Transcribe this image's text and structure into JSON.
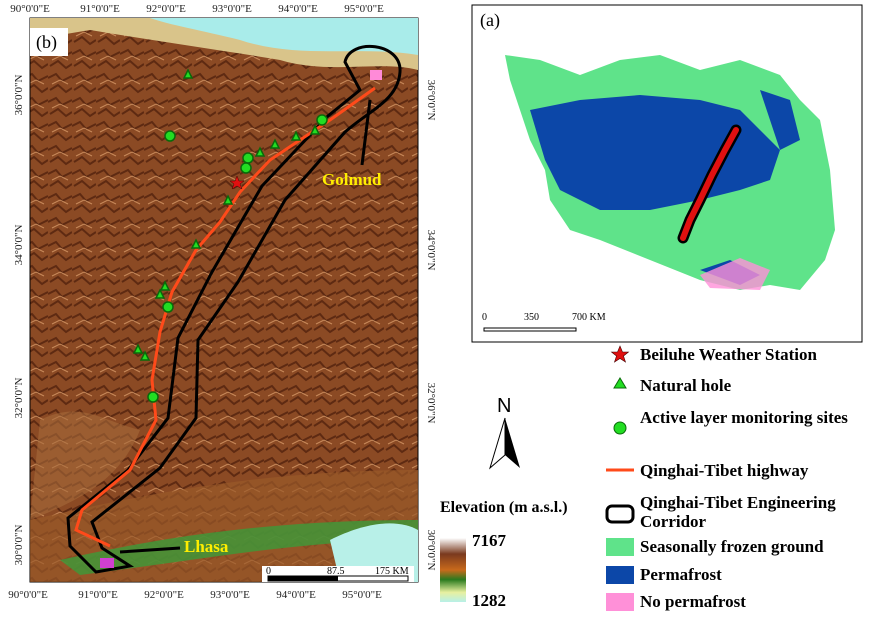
{
  "panel_b": {
    "label": "(b)",
    "top_labels": [
      "90°0'0\"E",
      "91°0'0\"E",
      "92°0'0\"E",
      "93°0'0\"E",
      "94°0'0\"E",
      "95°0'0\"E"
    ],
    "bottom_labels": [
      "90°0'0\"E",
      "91°0'0\"E",
      "92°0'0\"E",
      "93°0'0\"E",
      "94°0'0\"E",
      "95°0'0\"E"
    ],
    "left_labels": [
      "36°0'0\"N",
      "34°0'0\"N",
      "32°0'0\"N",
      "30°0'0\"N"
    ],
    "right_labels": [
      "36°0'0\"N",
      "34°0'0\"N",
      "32°0'0\"N",
      "30°0'0\"N"
    ],
    "places": [
      "Golmud",
      "Lhasa"
    ],
    "scale_bar": [
      "0",
      "87.5",
      "175 KM"
    ],
    "north": "N"
  },
  "panel_a": {
    "label": "(a)",
    "scale_bar": [
      "0",
      "350",
      "700 KM"
    ]
  },
  "legend": {
    "items": [
      "Beiluhe Weather Station",
      "Natural hole",
      "Active layer monitoring sites",
      "Qinghai-Tibet highway",
      "Qinghai-Tibet Engineering Corridor",
      "Seasonally frozen ground",
      "Permafrost",
      "No permafrost"
    ],
    "elevation": {
      "title": "Elevation (m a.s.l.)",
      "max": "7167",
      "min": "1282"
    }
  }
}
